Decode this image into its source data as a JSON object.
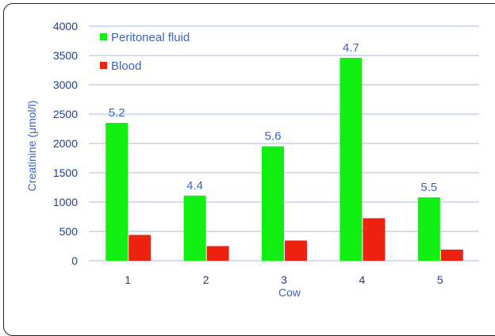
{
  "chart_data": {
    "type": "bar",
    "title": "",
    "xlabel": "Cow",
    "ylabel": "Creatinine (μmol/l)",
    "categories": [
      "1",
      "2",
      "3",
      "4",
      "5"
    ],
    "ylim": [
      0,
      4000
    ],
    "yticks": [
      0,
      500,
      1000,
      1500,
      2000,
      2500,
      3000,
      3500,
      4000
    ],
    "grid": "horizontal",
    "legend_position": "top-left",
    "series": [
      {
        "name": "Peritoneal fluid",
        "color": "#11ee11",
        "values": [
          2350,
          1110,
          1950,
          3460,
          1080
        ]
      },
      {
        "name": "Blood",
        "color": "#ee2211",
        "values": [
          440,
          250,
          345,
          725,
          190
        ]
      }
    ],
    "annotations": [
      "5.2",
      "4.4",
      "5.6",
      "4.7",
      "5.5"
    ]
  }
}
